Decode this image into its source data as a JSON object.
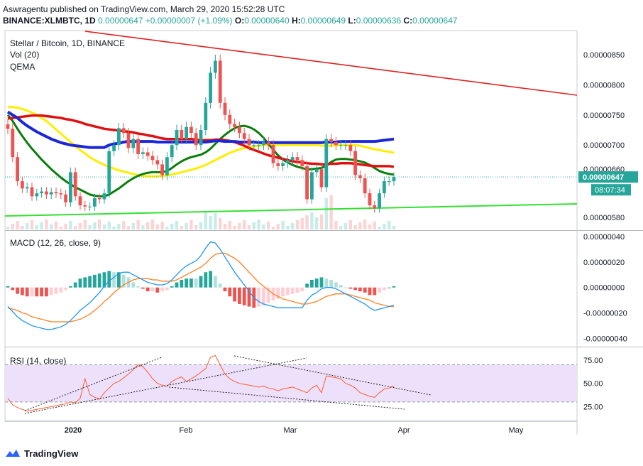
{
  "header": {
    "published": "Aswragentu published on TradingView.com, March 29, 2020 15:52:28 UTC",
    "symbol": "BINANCE:XLMBTC, 1D",
    "last": "0.00000647",
    "change": "+0.00000007 (+1.09%)",
    "o_label": "O:",
    "o": "0.00000640",
    "h_label": "H:",
    "h": "0.00000649",
    "l_label": "L:",
    "l": "0.00000636",
    "c_label": "C:",
    "c": "0.00000647"
  },
  "footer": {
    "brand": "TradingView"
  },
  "colors": {
    "up": "#26a69a",
    "down": "#ef5350",
    "ema_blue": "#1b27d6",
    "ema_red": "#e01010",
    "ema_yellow": "#ffee00",
    "ema_green": "#0a7d0a",
    "support": "#33e033",
    "resistance": "#e02020",
    "macd": "#2196f3",
    "signal": "#ff7f1f",
    "rsi_line": "#ff5b30",
    "rsi_band": "#ede0fa"
  },
  "chart_data": [
    {
      "type": "candlestick",
      "title": "Stellar / Bitcoin, 1D, BINANCE",
      "legend": [
        "Vol (20)",
        "QEMA"
      ],
      "ylim": [
        5.6e-06,
        8.9e-06
      ],
      "y_ticks": [
        "0.00000850",
        "0.00000800",
        "0.00000750",
        "0.00000700",
        "0.00000660",
        "0.00000580"
      ],
      "y_ticks_values": [
        8.5e-06,
        8e-06,
        7.5e-06,
        7e-06,
        6.6e-06,
        5.8e-06
      ],
      "price_tag": "0.00000647",
      "countdown_tag": "08:07:34",
      "x_ticks": [
        "2020",
        "Feb",
        "Mar",
        "Apr",
        "May"
      ],
      "close": [
        7.27e-06,
        6.8e-06,
        6.4e-06,
        6.28e-06,
        6.3e-06,
        6.15e-06,
        6.2e-06,
        6.23e-06,
        6.18e-06,
        6.22e-06,
        6.2e-06,
        6.18e-06,
        6.05e-06,
        6.55e-06,
        6.15e-06,
        6e-06,
        5.98e-06,
        5.98e-06,
        6.12e-06,
        6.1e-06,
        6.2e-06,
        6.9e-06,
        7e-06,
        7.28e-06,
        7.2e-06,
        6.95e-06,
        7.1e-06,
        6.85e-06,
        6.88e-06,
        6.82e-06,
        6.75e-06,
        6.68e-06,
        6.5e-06,
        6.8e-06,
        7e-06,
        7.25e-06,
        7.1e-06,
        7.3e-06,
        7.2e-06,
        7e-06,
        7.25e-06,
        7.7e-06,
        8.2e-06,
        8.4e-06,
        7.7e-06,
        7.5e-06,
        7.35e-06,
        7.3e-06,
        7.2e-06,
        7.1e-06,
        7e-06,
        7e-06,
        7e-06,
        7.05e-06,
        7e-06,
        6.7e-06,
        6.65e-06,
        6.7e-06,
        6.75e-06,
        6.8e-06,
        6.75e-06,
        6.65e-06,
        6.1e-06,
        6.55e-06,
        6.6e-06,
        6.3e-06,
        7.1e-06,
        7.05e-06,
        7e-06,
        7e-06,
        7e-06,
        6.9e-06,
        6.5e-06,
        6.45e-06,
        6.2e-06,
        6e-06,
        5.95e-06,
        6.2e-06,
        6.4e-06,
        6.4e-06,
        6.47e-06
      ],
      "series": [
        {
          "name": "EMA blue",
          "values": [
            7.55e-06,
            7.5e-06,
            7.45e-06,
            7.38e-06,
            7.32e-06,
            7.27e-06,
            7.22e-06,
            7.18e-06,
            7.14e-06,
            7.1e-06,
            7.07e-06,
            7.04e-06,
            7.02e-06,
            7e-06,
            6.99e-06,
            6.98e-06,
            6.97e-06,
            6.96e-06,
            6.96e-06,
            6.96e-06,
            6.96e-06,
            7e-06,
            7.02e-06,
            7.03e-06,
            7.05e-06,
            7.06e-06,
            7.06e-06,
            7.06e-06,
            7.06e-06,
            7.06e-06,
            7.06e-06,
            7.05e-06,
            7.05e-06,
            7.05e-06,
            7.05e-06,
            7.05e-06,
            7.05e-06,
            7.05e-06,
            7.05e-06,
            7.05e-06,
            7.05e-06,
            7.05e-06,
            7.06e-06,
            7.07e-06,
            7.07e-06,
            7.06e-06,
            7.06e-06,
            7.06e-06,
            7.05e-06,
            7.05e-06,
            7.05e-06,
            7.05e-06,
            7.04e-06,
            7.04e-06,
            7.04e-06,
            7.04e-06,
            7.04e-06,
            7.04e-06,
            7.04e-06,
            7.04e-06,
            7.04e-06,
            7.04e-06,
            7.04e-06,
            7.04e-06,
            7.04e-06,
            7.04e-06,
            7.05e-06,
            7.05e-06,
            7.05e-06,
            7.06e-06,
            7.06e-06,
            7.06e-06,
            7.06e-06,
            7.06e-06,
            7.06e-06,
            7.06e-06,
            7.06e-06,
            7.07e-06,
            7.08e-06,
            7.09e-06,
            7.1e-06
          ]
        },
        {
          "name": "EMA red",
          "values": [
            7.44e-06,
            7.45e-06,
            7.46e-06,
            7.47e-06,
            7.48e-06,
            7.49e-06,
            7.49e-06,
            7.49e-06,
            7.48e-06,
            7.47e-06,
            7.46e-06,
            7.45e-06,
            7.43e-06,
            7.42e-06,
            7.4e-06,
            7.38e-06,
            7.35e-06,
            7.33e-06,
            7.31e-06,
            7.29e-06,
            7.27e-06,
            7.26e-06,
            7.25e-06,
            7.24e-06,
            7.23e-06,
            7.22e-06,
            7.21e-06,
            7.19e-06,
            7.18e-06,
            7.16e-06,
            7.15e-06,
            7.13e-06,
            7.11e-06,
            7.1e-06,
            7.1e-06,
            7.1e-06,
            7.1e-06,
            7.1e-06,
            7.1e-06,
            7.09e-06,
            7.08e-06,
            7.08e-06,
            7.08e-06,
            7.09e-06,
            7.09e-06,
            7.08e-06,
            7.07e-06,
            7.05e-06,
            7.02e-06,
            6.99e-06,
            6.95e-06,
            6.92e-06,
            6.89e-06,
            6.86e-06,
            6.83e-06,
            6.81e-06,
            6.79e-06,
            6.77e-06,
            6.75e-06,
            6.73e-06,
            6.72e-06,
            6.71e-06,
            6.7e-06,
            6.69e-06,
            6.69e-06,
            6.68e-06,
            6.68e-06,
            6.69e-06,
            6.69e-06,
            6.7e-06,
            6.7e-06,
            6.7e-06,
            6.69e-06,
            6.68e-06,
            6.67e-06,
            6.66e-06,
            6.65e-06,
            6.65e-06,
            6.65e-06,
            6.65e-06,
            6.64e-06
          ]
        },
        {
          "name": "EMA yellow",
          "values": [
            7.63e-06,
            7.63e-06,
            7.62e-06,
            7.6e-06,
            7.57e-06,
            7.54e-06,
            7.5e-06,
            7.45e-06,
            7.4e-06,
            7.33e-06,
            7.26e-06,
            7.19e-06,
            7.12e-06,
            7.05e-06,
            6.98e-06,
            6.92e-06,
            6.86e-06,
            6.8e-06,
            6.75e-06,
            6.71e-06,
            6.67e-06,
            6.64e-06,
            6.61e-06,
            6.58e-06,
            6.56e-06,
            6.54e-06,
            6.52e-06,
            6.5e-06,
            6.49e-06,
            6.48e-06,
            6.48e-06,
            6.48e-06,
            6.49e-06,
            6.5e-06,
            6.51e-06,
            6.53e-06,
            6.55e-06,
            6.57e-06,
            6.59e-06,
            6.61e-06,
            6.64e-06,
            6.67e-06,
            6.71e-06,
            6.75e-06,
            6.79e-06,
            6.83e-06,
            6.87e-06,
            6.9e-06,
            6.93e-06,
            6.95e-06,
            6.97e-06,
            6.98e-06,
            6.99e-06,
            7e-06,
            7e-06,
            7e-06,
            7e-06,
            7e-06,
            7e-06,
            7e-06,
            7e-06,
            7e-06,
            7e-06,
            7e-06,
            7e-06,
            6.99e-06,
            6.99e-06,
            6.99e-06,
            7e-06,
            7e-06,
            7e-06,
            7e-06,
            7e-06,
            6.99e-06,
            6.97e-06,
            6.95e-06,
            6.93e-06,
            6.92e-06,
            6.9e-06,
            6.89e-06,
            6.87e-06
          ]
        },
        {
          "name": "EMA green",
          "values": [
            7.5e-06,
            7.4e-06,
            7.27e-06,
            7.15e-06,
            7.04e-06,
            6.94e-06,
            6.85e-06,
            6.76e-06,
            6.68e-06,
            6.6e-06,
            6.53e-06,
            6.46e-06,
            6.4e-06,
            6.35e-06,
            6.3e-06,
            6.26e-06,
            6.22e-06,
            6.18e-06,
            6.16e-06,
            6.15e-06,
            6.15e-06,
            6.18e-06,
            6.23e-06,
            6.28e-06,
            6.34e-06,
            6.4e-06,
            6.45e-06,
            6.49e-06,
            6.52e-06,
            6.54e-06,
            6.55e-06,
            6.55e-06,
            6.55e-06,
            6.57e-06,
            6.62e-06,
            6.68e-06,
            6.73e-06,
            6.77e-06,
            6.8e-06,
            6.82e-06,
            6.84e-06,
            6.88e-06,
            6.94e-06,
            7.02e-06,
            7.1e-06,
            7.17e-06,
            7.23e-06,
            7.28e-06,
            7.31e-06,
            7.32e-06,
            7.3e-06,
            7.26e-06,
            7.2e-06,
            7.12e-06,
            7.02e-06,
            6.92e-06,
            6.83e-06,
            6.76e-06,
            6.71e-06,
            6.67e-06,
            6.64e-06,
            6.62e-06,
            6.6e-06,
            6.6e-06,
            6.61e-06,
            6.62e-06,
            6.66e-06,
            6.72e-06,
            6.76e-06,
            6.77e-06,
            6.77e-06,
            6.76e-06,
            6.75e-06,
            6.73e-06,
            6.71e-06,
            6.67e-06,
            6.62e-06,
            6.57e-06,
            6.54e-06,
            6.52e-06,
            6.51e-06
          ]
        }
      ]
    },
    {
      "type": "line",
      "title": "MACD (12, 26, close, 9)",
      "ylim": [
        -4.6e-07,
        4.4e-07
      ],
      "y_ticks": [
        "0.00000040",
        "0.00000020",
        "0.00000000",
        "-0.00000020",
        "-0.00000040"
      ],
      "y_ticks_values": [
        4e-07,
        2e-07,
        0.0,
        -2e-07,
        -4e-07
      ],
      "series": [
        {
          "name": "MACD",
          "values": [
            -1.5e-07,
            -1.9e-07,
            -2.3e-07,
            -2.6e-07,
            -2.8e-07,
            -3e-07,
            -3.1e-07,
            -3.2e-07,
            -3.3e-07,
            -3.3e-07,
            -3.2e-07,
            -3.1e-07,
            -2.9e-07,
            -2.6e-07,
            -2.2e-07,
            -1.8e-07,
            -1.5e-07,
            -1.2e-07,
            -8e-08,
            -4e-08,
            1e-08,
            5e-08,
            8e-08,
            1.1e-07,
            1.2e-07,
            1.2e-07,
            1e-07,
            8e-08,
            6e-08,
            4e-08,
            3e-08,
            2e-08,
            2e-08,
            3e-08,
            6e-08,
            1e-07,
            1.4e-07,
            1.7e-07,
            1.9e-07,
            2.1e-07,
            2.5e-07,
            3.1e-07,
            3.6e-07,
            3.5e-07,
            3e-07,
            2.4e-07,
            1.8e-07,
            1.2e-07,
            7e-08,
            2e-08,
            -3e-08,
            -8e-08,
            -1.1e-07,
            -1.3e-07,
            -1.4e-07,
            -1.5e-07,
            -1.6e-07,
            -1.6e-07,
            -1.6e-07,
            -1.6e-07,
            -1.6e-07,
            -1.6e-07,
            -1e-07,
            -6e-08,
            -4e-08,
            -1e-08,
            0.0,
            0.0,
            -1e-08,
            -3e-08,
            -5e-08,
            -7e-08,
            -9e-08,
            -1.1e-07,
            -1.3e-07,
            -1.6e-07,
            -1.8e-07,
            -1.7e-07,
            -1.6e-07,
            -1.5e-07,
            -1.4e-07
          ]
        },
        {
          "name": "Signal",
          "values": [
            -1.6e-07,
            -1.7e-07,
            -1.8e-07,
            -2e-07,
            -2.1e-07,
            -2.3e-07,
            -2.4e-07,
            -2.5e-07,
            -2.6e-07,
            -2.7e-07,
            -2.7e-07,
            -2.7e-07,
            -2.7e-07,
            -2.7e-07,
            -2.6e-07,
            -2.5e-07,
            -2.3e-07,
            -2.1e-07,
            -1.8e-07,
            -1.5e-07,
            -1.1e-07,
            -8e-08,
            -4e-08,
            -1e-08,
            2e-08,
            4e-08,
            6e-08,
            7e-08,
            7e-08,
            7e-08,
            6e-08,
            6e-08,
            5e-08,
            5e-08,
            5e-08,
            6e-08,
            8e-08,
            1e-07,
            1.2e-07,
            1.4e-07,
            1.6e-07,
            1.9e-07,
            2.3e-07,
            2.6e-07,
            2.7e-07,
            2.7e-07,
            2.5e-07,
            2.3e-07,
            2e-07,
            1.6e-07,
            1.2e-07,
            8e-08,
            4e-08,
            1e-08,
            -2e-08,
            -5e-08,
            -7e-08,
            -9e-08,
            -1e-07,
            -1.1e-07,
            -1.2e-07,
            -1.3e-07,
            -1.3e-07,
            -1.2e-07,
            -1.1e-07,
            -9e-08,
            -7e-08,
            -6e-08,
            -5e-08,
            -5e-08,
            -5e-08,
            -6e-08,
            -7e-08,
            -8e-08,
            -9e-08,
            -1e-07,
            -1.2e-07,
            -1.3e-07,
            -1.4e-07,
            -1.5e-07,
            -1.5e-07
          ]
        }
      ]
    },
    {
      "type": "line",
      "title": "RSI (14, close)",
      "ylim": [
        10,
        88
      ],
      "y_ticks": [
        "75.00",
        "50.00",
        "25.00"
      ],
      "y_ticks_values": [
        75,
        50,
        25
      ],
      "band": [
        30,
        70
      ],
      "series": [
        {
          "name": "RSI",
          "values": [
            34,
            27,
            24,
            22,
            20,
            21,
            22,
            23,
            24,
            25,
            26,
            27,
            28,
            30,
            29,
            34,
            55,
            38,
            35,
            33,
            40,
            45,
            50,
            52,
            56,
            60,
            65,
            70,
            68,
            62,
            55,
            50,
            48,
            47,
            52,
            55,
            57,
            52,
            55,
            58,
            62,
            66,
            78,
            80,
            70,
            60,
            55,
            52,
            50,
            49,
            48,
            47,
            46,
            47,
            45,
            44,
            42,
            44,
            45,
            46,
            44,
            42,
            40,
            45,
            48,
            40,
            58,
            57,
            56,
            55,
            50,
            48,
            45,
            40,
            38,
            36,
            35,
            40,
            44,
            45,
            47
          ]
        }
      ]
    }
  ]
}
